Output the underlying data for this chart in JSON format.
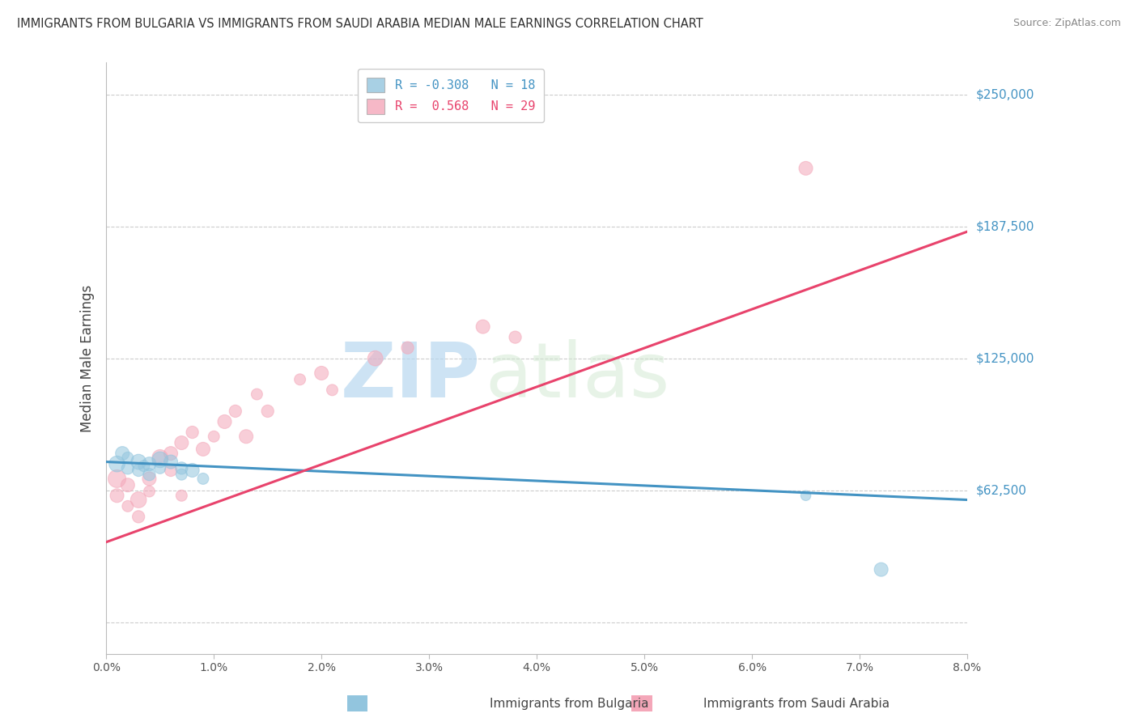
{
  "title": "IMMIGRANTS FROM BULGARIA VS IMMIGRANTS FROM SAUDI ARABIA MEDIAN MALE EARNINGS CORRELATION CHART",
  "source": "Source: ZipAtlas.com",
  "ylabel": "Median Male Earnings",
  "yticks": [
    0,
    62500,
    125000,
    187500,
    250000
  ],
  "ytick_labels": [
    "",
    "$62,500",
    "$125,000",
    "$187,500",
    "$250,000"
  ],
  "xtick_positions": [
    0.0,
    0.01,
    0.02,
    0.03,
    0.04,
    0.05,
    0.06,
    0.07,
    0.08
  ],
  "xtick_labels": [
    "0.0%",
    "1.0%",
    "2.0%",
    "3.0%",
    "4.0%",
    "5.0%",
    "6.0%",
    "7.0%",
    "8.0%"
  ],
  "xlim": [
    0.0,
    0.08
  ],
  "ylim": [
    -15000,
    265000
  ],
  "legend1_label": "R = -0.308   N = 18",
  "legend2_label": "R =  0.568   N = 29",
  "footer1": "Immigrants from Bulgaria",
  "footer2": "Immigrants from Saudi Arabia",
  "blue_color": "#92c5de",
  "pink_color": "#f4a7b9",
  "blue_line_color": "#4393c3",
  "pink_line_color": "#e8436c",
  "watermark_zip": "ZIP",
  "watermark_atlas": "atlas",
  "bg_color": "#ffffff",
  "grid_color": "#cccccc",
  "blue_scatter_x": [
    0.001,
    0.0015,
    0.002,
    0.002,
    0.003,
    0.003,
    0.0035,
    0.004,
    0.004,
    0.005,
    0.005,
    0.006,
    0.007,
    0.007,
    0.008,
    0.009,
    0.065,
    0.072
  ],
  "blue_scatter_y": [
    75000,
    80000,
    73000,
    78000,
    76000,
    72000,
    74000,
    75000,
    70000,
    77000,
    73000,
    76000,
    73000,
    70000,
    72000,
    68000,
    60000,
    25000
  ],
  "blue_scatter_size": [
    200,
    150,
    120,
    100,
    180,
    120,
    100,
    150,
    120,
    200,
    100,
    150,
    120,
    100,
    150,
    100,
    80,
    150
  ],
  "pink_scatter_x": [
    0.001,
    0.001,
    0.002,
    0.002,
    0.003,
    0.003,
    0.004,
    0.004,
    0.005,
    0.006,
    0.006,
    0.007,
    0.007,
    0.008,
    0.009,
    0.01,
    0.011,
    0.012,
    0.013,
    0.014,
    0.015,
    0.018,
    0.02,
    0.021,
    0.025,
    0.028,
    0.035,
    0.038,
    0.065
  ],
  "pink_scatter_y": [
    68000,
    60000,
    65000,
    55000,
    58000,
    50000,
    62000,
    68000,
    78000,
    80000,
    72000,
    85000,
    60000,
    90000,
    82000,
    88000,
    95000,
    100000,
    88000,
    108000,
    100000,
    115000,
    118000,
    110000,
    125000,
    130000,
    140000,
    135000,
    215000
  ],
  "pink_scatter_size": [
    250,
    150,
    150,
    100,
    200,
    120,
    100,
    150,
    200,
    150,
    120,
    150,
    100,
    120,
    150,
    100,
    150,
    120,
    150,
    100,
    120,
    100,
    150,
    100,
    180,
    120,
    150,
    120,
    150
  ],
  "blue_line_x0": 0.0,
  "blue_line_y0": 76000,
  "blue_line_x1": 0.08,
  "blue_line_y1": 58000,
  "pink_line_x0": 0.0,
  "pink_line_y0": 38000,
  "pink_line_x1": 0.08,
  "pink_line_y1": 185000
}
